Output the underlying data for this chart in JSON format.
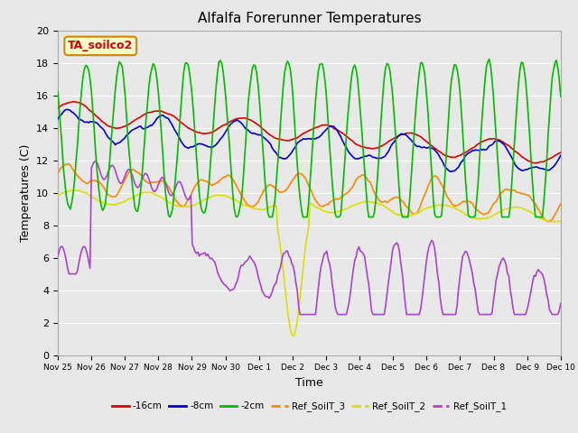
{
  "title": "Alfalfa Forerunner Temperatures",
  "xlabel": "Time",
  "ylabel": "Temperatures (C)",
  "ylim": [
    0,
    20
  ],
  "annotation_text": "TA_soilco2",
  "annotation_color": "#cc0000",
  "annotation_bg": "#ffffcc",
  "plot_bg": "#e8e8e8",
  "fig_bg": "#e8e8e8",
  "grid_color": "#ffffff",
  "tick_labels": [
    "Nov 25",
    "Nov 26",
    "Nov 27",
    "Nov 28",
    "Nov 29",
    "Nov 30",
    "Dec 1",
    "Dec 2",
    "Dec 3",
    "Dec 4",
    "Dec 5",
    "Dec 6",
    "Dec 7",
    "Dec 8",
    "Dec 9",
    "Dec 10"
  ],
  "series": {
    "neg16cm": {
      "color": "#dd0000",
      "label": "-16cm",
      "linestyle": "-",
      "linewidth": 1.2
    },
    "neg8cm": {
      "color": "#0000cc",
      "label": "-8cm",
      "linestyle": "-",
      "linewidth": 1.2
    },
    "neg2cm": {
      "color": "#00bb00",
      "label": "-2cm",
      "linestyle": "-",
      "linewidth": 1.2
    },
    "ref3": {
      "color": "#ff8800",
      "label": "Ref_SoilT_3",
      "linestyle": "-",
      "linewidth": 1.2
    },
    "ref2": {
      "color": "#dddd00",
      "label": "Ref_SoilT_2",
      "linestyle": "-",
      "linewidth": 1.2
    },
    "ref1": {
      "color": "#aa44cc",
      "label": "Ref_SoilT_1",
      "linestyle": "-",
      "linewidth": 1.2
    }
  }
}
